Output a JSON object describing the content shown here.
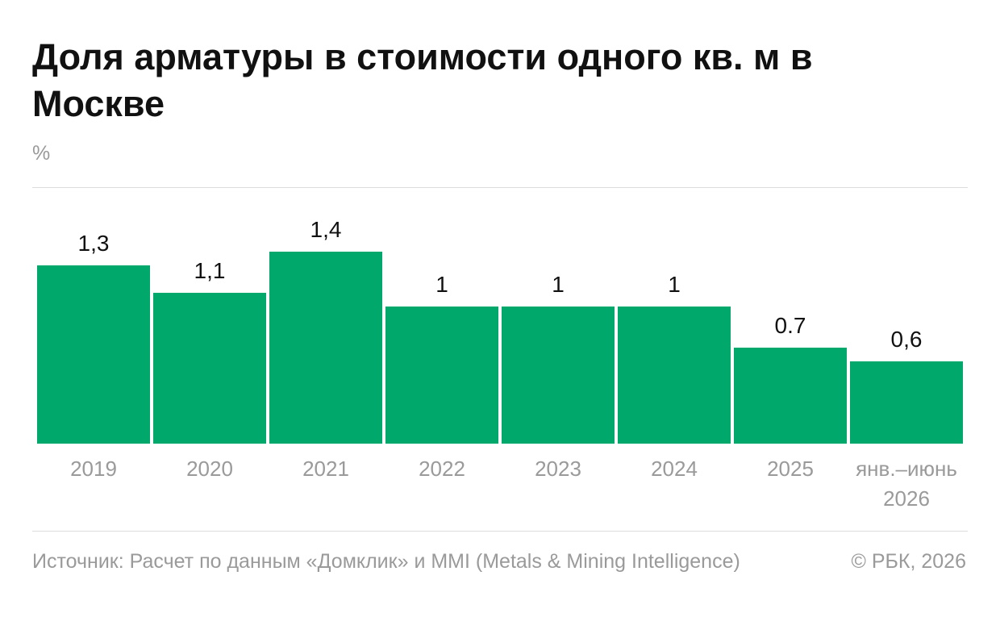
{
  "header": {
    "title": "Доля арматуры в стоимости одного кв. м в Москве",
    "unit": "%"
  },
  "footer": {
    "source": "Источник: Расчет по данным «Домклик» и MMI (Metals & Mining Intelligence)",
    "copyright": "© РБК, 2026"
  },
  "colors": {
    "bar": "#00a86b"
  },
  "chart_data": {
    "type": "bar",
    "title": "Доля арматуры в стоимости одного кв. м в Москве",
    "ylabel": "%",
    "categories": [
      "2019",
      "2020",
      "2021",
      "2022",
      "2023",
      "2024",
      "2025",
      "янв.–июнь 2026"
    ],
    "category_lines": [
      [
        "2019"
      ],
      [
        "2020"
      ],
      [
        "2021"
      ],
      [
        "2022"
      ],
      [
        "2023"
      ],
      [
        "2024"
      ],
      [
        "2025"
      ],
      [
        "янв.–июнь",
        "2026"
      ]
    ],
    "values": [
      1.3,
      1.1,
      1.4,
      1.0,
      1.0,
      1.0,
      0.7,
      0.6
    ],
    "value_labels": [
      "1,3",
      "1,1",
      "1,4",
      "1",
      "1",
      "1",
      "0.7",
      "0,6"
    ],
    "ylim": [
      0,
      1.4
    ],
    "grid": false,
    "legend": "none"
  }
}
